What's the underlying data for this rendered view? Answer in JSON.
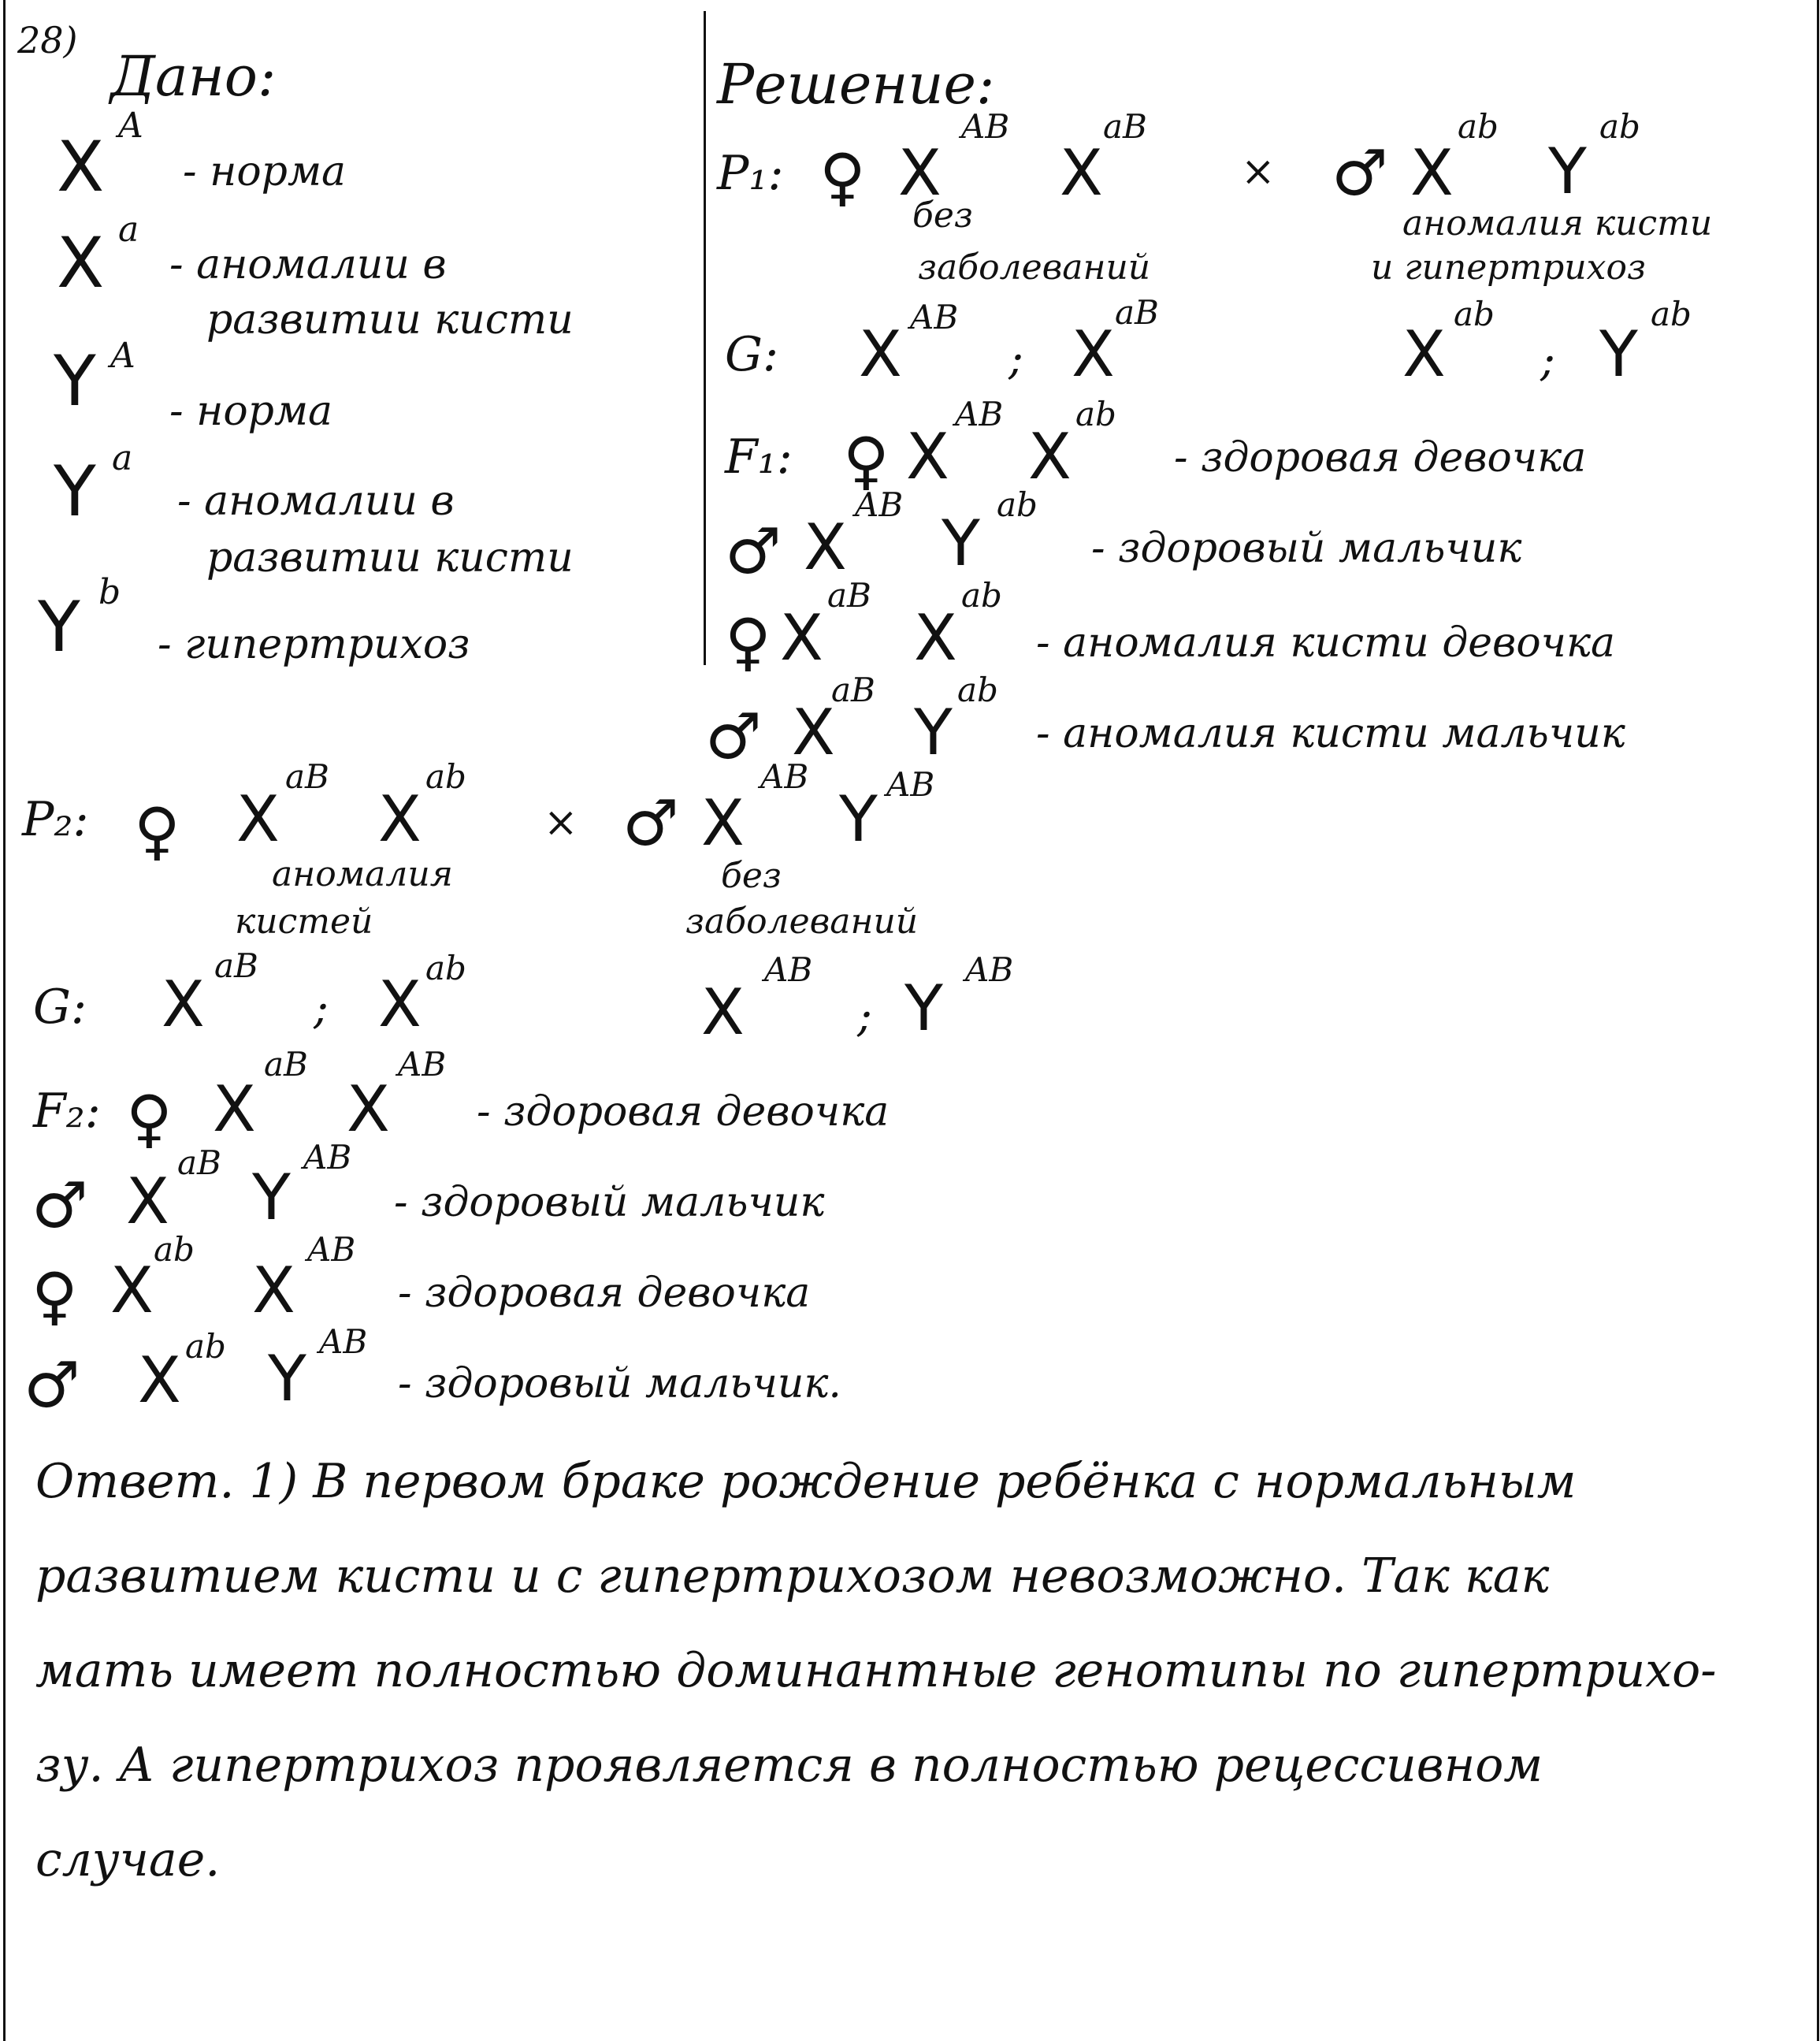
{
  "task_number": "28)",
  "given": {
    "title": "Дано:",
    "rows": [
      {
        "sym": "X",
        "sup": "A",
        "desc": "- норма",
        "desc2": ""
      },
      {
        "sym": "X",
        "sup": "a",
        "desc": "- аномалии в",
        "desc2": "развитии кисти"
      },
      {
        "sym": "Y",
        "sup": "A",
        "desc": "- норма",
        "desc2": ""
      },
      {
        "sym": "Y",
        "sup": "a",
        "desc": "- аномалии в",
        "desc2": "развитии кисти"
      },
      {
        "sym": "Y",
        "sup": "b",
        "desc": "- гипертрихоз",
        "desc2": ""
      }
    ]
  },
  "solution": {
    "title": "Решение:",
    "p1": {
      "label": "P₁:",
      "female": {
        "sex": "♀",
        "g1": "X",
        "s1": "AB",
        "g2": "X",
        "s2": "aB"
      },
      "cross": "×",
      "male": {
        "sex": "♂",
        "g1": "X",
        "s1": "ab",
        "g2": "Y",
        "s2": "ab"
      },
      "female_note": [
        "без",
        "заболеваний"
      ],
      "male_note": [
        "аномалия кисти",
        "и гипертрихоз"
      ]
    },
    "g1": {
      "label": "G:",
      "female": {
        "g1": "X",
        "s1": "AB",
        "sep": ";",
        "g2": "X",
        "s2": "aB"
      },
      "male": {
        "g1": "X",
        "s1": "ab",
        "sep": ";",
        "g2": "Y",
        "s2": "ab"
      }
    },
    "f1": {
      "label": "F₁:",
      "rows": [
        {
          "sex": "♀",
          "g1": "X",
          "s1": "AB",
          "g2": "X",
          "s2": "ab",
          "desc": "- здоровая девочка"
        },
        {
          "sex": "♂",
          "g1": "X",
          "s1": "AB",
          "g2": "Y",
          "s2": "ab",
          "desc": "- здоровый мальчик"
        },
        {
          "sex": "♀",
          "g1": "X",
          "s1": "aB",
          "g2": "X",
          "s2": "ab",
          "desc": "- аномалия кисти девочка"
        },
        {
          "sex": "♂",
          "g1": "X",
          "s1": "aB",
          "g2": "Y",
          "s2": "ab",
          "desc": "- аномалия кисти мальчик"
        }
      ]
    }
  },
  "p2": {
    "label": "P₂:",
    "female": {
      "sex": "♀",
      "g1": "X",
      "s1": "aB",
      "g2": "X",
      "s2": "ab"
    },
    "cross": "×",
    "male": {
      "sex": "♂",
      "g1": "X",
      "s1": "AB",
      "g2": "Y",
      "s2": "AB"
    },
    "female_note": [
      "аномалия",
      "кистей"
    ],
    "male_note": [
      "без",
      "заболеваний"
    ]
  },
  "g2": {
    "label": "G:",
    "female": {
      "g1": "X",
      "s1": "aB",
      "sep": ";",
      "g2": "X",
      "s2": "ab"
    },
    "male": {
      "g1": "X",
      "s1": "AB",
      "sep": ";",
      "g2": "Y",
      "s2": "AB"
    }
  },
  "f2": {
    "label": "F₂:",
    "rows": [
      {
        "sex": "♀",
        "g1": "X",
        "s1": "aB",
        "g2": "X",
        "s2": "AB",
        "desc": "- здоровая девочка"
      },
      {
        "sex": "♂",
        "g1": "X",
        "s1": "aB",
        "g2": "Y",
        "s2": "AB",
        "desc": "- здоровый мальчик"
      },
      {
        "sex": "♀",
        "g1": "X",
        "s1": "ab",
        "g2": "X",
        "s2": "AB",
        "desc": "- здоровая девочка"
      },
      {
        "sex": "♂",
        "g1": "X",
        "s1": "ab",
        "g2": "Y",
        "s2": "AB",
        "desc": "- здоровый мальчик."
      }
    ]
  },
  "answer": {
    "lines": [
      "Ответ. 1) В первом браке рождение ребёнка с нормальным",
      "развитием кисти и с гипертрихозом невозможно. Так как",
      "мать имеет полностью доминантные генотипы по гипертрихо-",
      "зу. А гипертрихоз проявляется в полностью рецессивном",
      "случае."
    ]
  }
}
